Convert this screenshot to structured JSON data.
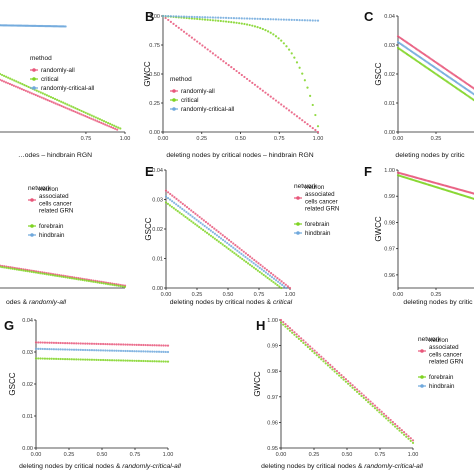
{
  "colors": {
    "red": "#e8567a",
    "green": "#7ed321",
    "blue": "#6fa8dc"
  },
  "chart_data": [
    {
      "id": "A",
      "type": "scatter",
      "panel_label": "",
      "xlabel_parts": [
        "…odes – hindbrain RGN"
      ],
      "ylabel": "",
      "xticks": [
        0.75,
        1.0
      ],
      "yticks": [],
      "xlim": [
        0.2,
        1.0
      ],
      "ylim": [
        0,
        1
      ],
      "legend": {
        "title": "method",
        "position": "center",
        "entries": [
          {
            "label": "randomly-all",
            "color": "red"
          },
          {
            "label": "critical",
            "color": "green"
          },
          {
            "label": "randomly-critical-all",
            "color": "blue"
          }
        ]
      },
      "series": [
        {
          "name": "randomly-all",
          "color": "red",
          "kind": "linear",
          "from": [
            0.2,
            0.45
          ],
          "to": [
            0.95,
            0.02
          ]
        },
        {
          "name": "critical",
          "color": "green",
          "kind": "linear",
          "from": [
            0.2,
            0.5
          ],
          "to": [
            0.97,
            0.03
          ]
        },
        {
          "name": "randomly-critical-all",
          "color": "blue",
          "kind": "linear",
          "from": [
            0.2,
            0.92
          ],
          "to": [
            0.62,
            0.91
          ]
        }
      ]
    },
    {
      "id": "B",
      "type": "scatter",
      "panel_label": "B",
      "xlabel_parts": [
        "deleting nodes by critical nodes – hindbrain RGN"
      ],
      "ylabel": "GWCC",
      "xticks": [
        0.0,
        0.25,
        0.5,
        0.75,
        1.0
      ],
      "yticks": [
        0.0,
        0.25,
        0.5,
        0.75,
        1.0
      ],
      "xlim": [
        0,
        1
      ],
      "ylim": [
        0,
        1
      ],
      "legend": {
        "title": "method",
        "position": "bottom-left",
        "entries": [
          {
            "label": "randomly-all",
            "color": "red"
          },
          {
            "label": "critical",
            "color": "green"
          },
          {
            "label": "randomly-critical-all",
            "color": "blue"
          }
        ]
      },
      "series": [
        {
          "name": "randomly-all",
          "color": "red",
          "kind": "linear",
          "from": [
            0,
            1.0
          ],
          "to": [
            1.0,
            0.0
          ]
        },
        {
          "name": "critical",
          "color": "green",
          "kind": "critical",
          "from": [
            0,
            1.0
          ],
          "to": [
            1.0,
            0.05
          ]
        },
        {
          "name": "randomly-critical-all",
          "color": "blue",
          "kind": "linear",
          "from": [
            0,
            1.0
          ],
          "to": [
            1.0,
            0.96
          ]
        }
      ]
    },
    {
      "id": "C",
      "type": "scatter",
      "panel_label": "C",
      "xlabel_parts": [
        "deleting nodes by critic"
      ],
      "ylabel": "GSCC",
      "xticks": [
        0.0,
        0.25
      ],
      "yticks": [
        0.0,
        0.01,
        0.02,
        0.03,
        0.04
      ],
      "xlim": [
        0,
        0.5
      ],
      "ylim": [
        0,
        0.04
      ],
      "legend": null,
      "series": [
        {
          "name": "",
          "color": "red",
          "kind": "linear",
          "from": [
            0,
            0.033
          ],
          "to": [
            0.5,
            0.015
          ]
        },
        {
          "name": "",
          "color": "blue",
          "kind": "linear",
          "from": [
            0,
            0.031
          ],
          "to": [
            0.5,
            0.013
          ]
        },
        {
          "name": "",
          "color": "green",
          "kind": "linear",
          "from": [
            0,
            0.029
          ],
          "to": [
            0.5,
            0.011
          ]
        }
      ]
    },
    {
      "id": "D",
      "type": "scatter",
      "panel_label": "",
      "xlabel_parts": [
        "odes & ",
        "randomly-all"
      ],
      "ylabel": "",
      "xticks": [],
      "yticks": [],
      "xlim": [
        0,
        1
      ],
      "ylim": [
        0,
        1
      ],
      "legend": {
        "title": "network",
        "position": "center",
        "entries": [
          {
            "label": "neuron associated cells cancer related GRN",
            "color": "red"
          },
          {
            "label": "forebrain",
            "color": "green"
          },
          {
            "label": "hindbrain",
            "color": "blue"
          }
        ]
      },
      "series": [
        {
          "name": "",
          "color": "red",
          "kind": "linear",
          "from": [
            0,
            0.19
          ],
          "to": [
            1.0,
            0.02
          ]
        },
        {
          "name": "",
          "color": "green",
          "kind": "linear",
          "from": [
            0,
            0.18
          ],
          "to": [
            1.0,
            0.01
          ]
        }
      ]
    },
    {
      "id": "E",
      "type": "scatter",
      "panel_label": "E",
      "xlabel_parts": [
        "deleting nodes by critical nodes & ",
        "critical"
      ],
      "ylabel": "GSCC",
      "xticks": [
        0.0,
        0.25,
        0.5,
        0.75,
        1.0
      ],
      "yticks": [
        0.0,
        0.01,
        0.02,
        0.03,
        0.04
      ],
      "xlim": [
        0,
        1
      ],
      "ylim": [
        0,
        0.04
      ],
      "legend": {
        "title": "network",
        "position": "right",
        "entries": [
          {
            "label": "neuron associated cells cancer related GRN",
            "color": "red"
          },
          {
            "label": "forebrain",
            "color": "green"
          },
          {
            "label": "hindbrain",
            "color": "blue"
          }
        ]
      },
      "series": [
        {
          "name": "",
          "color": "red",
          "kind": "linear",
          "from": [
            0,
            0.033
          ],
          "to": [
            1.0,
            0.0
          ]
        },
        {
          "name": "",
          "color": "blue",
          "kind": "linear",
          "from": [
            0,
            0.031
          ],
          "to": [
            0.97,
            0.0
          ]
        },
        {
          "name": "",
          "color": "green",
          "kind": "linear",
          "from": [
            0,
            0.029
          ],
          "to": [
            0.93,
            0.0
          ]
        }
      ]
    },
    {
      "id": "F",
      "type": "scatter",
      "panel_label": "F",
      "xlabel_parts": [
        "deleting nodes by critic"
      ],
      "ylabel": "GWCC",
      "xticks": [
        0.0,
        0.25
      ],
      "yticks": [
        0.96,
        0.97,
        0.98,
        0.99,
        1.0
      ],
      "xlim": [
        0,
        0.5
      ],
      "ylim": [
        0.955,
        1.0
      ],
      "legend": null,
      "series": [
        {
          "name": "",
          "color": "red",
          "kind": "linear",
          "from": [
            0,
            0.999
          ],
          "to": [
            0.5,
            0.991
          ]
        },
        {
          "name": "",
          "color": "green",
          "kind": "linear",
          "from": [
            0,
            0.998
          ],
          "to": [
            0.5,
            0.989
          ]
        }
      ]
    },
    {
      "id": "G",
      "type": "scatter",
      "panel_label": "G",
      "xlabel_parts": [
        "deleting nodes by critical nodes & ",
        "randomly-critical-all"
      ],
      "ylabel": "GSCC",
      "xticks": [
        0.0,
        0.25,
        0.5,
        0.75,
        1.0
      ],
      "yticks": [
        0.0,
        0.01,
        0.02,
        0.03,
        0.04
      ],
      "xlim": [
        0,
        1
      ],
      "ylim": [
        0,
        0.04
      ],
      "legend": null,
      "series": [
        {
          "name": "",
          "color": "red",
          "kind": "linear",
          "from": [
            0,
            0.033
          ],
          "to": [
            1.0,
            0.032
          ]
        },
        {
          "name": "",
          "color": "blue",
          "kind": "linear",
          "from": [
            0,
            0.031
          ],
          "to": [
            1.0,
            0.03
          ]
        },
        {
          "name": "",
          "color": "green",
          "kind": "linear",
          "from": [
            0,
            0.028
          ],
          "to": [
            1.0,
            0.027
          ]
        }
      ]
    },
    {
      "id": "H",
      "type": "scatter",
      "panel_label": "H",
      "xlabel_parts": [
        "deleting nodes by critical nodes & ",
        "randomly-critical-all"
      ],
      "ylabel": "GWCC",
      "xticks": [
        0.0,
        0.25,
        0.5,
        0.75,
        1.0
      ],
      "yticks": [
        0.95,
        0.96,
        0.97,
        0.98,
        0.99,
        1.0
      ],
      "xlim": [
        0,
        1
      ],
      "ylim": [
        0.95,
        1.0
      ],
      "legend": {
        "title": "network",
        "position": "right",
        "entries": [
          {
            "label": "neuron associated cells cancer related GRN",
            "color": "red"
          },
          {
            "label": "forebrain",
            "color": "green"
          },
          {
            "label": "hindbrain",
            "color": "blue"
          }
        ]
      },
      "series": [
        {
          "name": "",
          "color": "red",
          "kind": "linear",
          "from": [
            0,
            1.0
          ],
          "to": [
            1.0,
            0.953
          ]
        },
        {
          "name": "",
          "color": "green",
          "kind": "linear",
          "from": [
            0,
            0.999
          ],
          "to": [
            1.0,
            0.952
          ]
        }
      ]
    }
  ]
}
